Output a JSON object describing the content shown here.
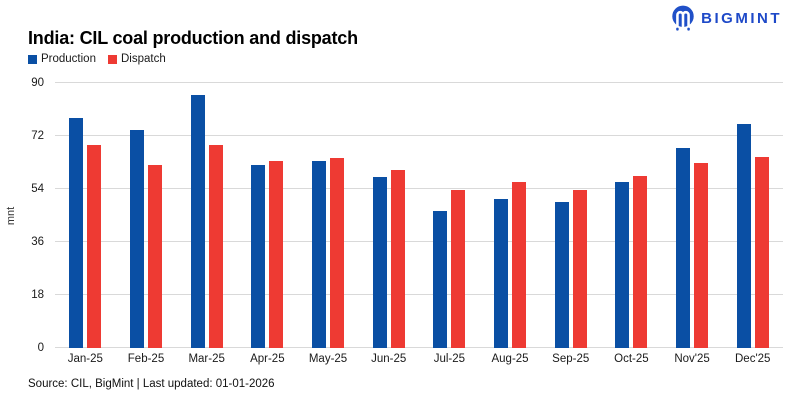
{
  "logo": {
    "text": "BIGMINT"
  },
  "header": {
    "title": "India: CIL coal production and dispatch"
  },
  "footer": {
    "text": "Source: CIL, BigMint | Last updated: 01-01-2026"
  },
  "colors": {
    "production": "#0a4fa4",
    "dispatch": "#ee3a33",
    "grid": "#d9d9d9",
    "logo": "#2050c8",
    "logo_text": "#1e49c8"
  },
  "chart_data": {
    "type": "bar",
    "title": "India: CIL coal production and dispatch",
    "categories": [
      "Jan-25",
      "Feb-25",
      "Mar-25",
      "Apr-25",
      "May-25",
      "Jun-25",
      "Jul-25",
      "Aug-25",
      "Sep-25",
      "Oct-25",
      "Nov'25",
      "Dec'25"
    ],
    "series": [
      {
        "name": "Production",
        "color": "#0a4fa4",
        "values": [
          78,
          74,
          86,
          62,
          63.5,
          58,
          46.5,
          50.5,
          49.5,
          56.5,
          68,
          76
        ]
      },
      {
        "name": "Dispatch",
        "color": "#ee3a33",
        "values": [
          69,
          62,
          69,
          63.5,
          64.5,
          60.5,
          53.5,
          56.5,
          53.5,
          58.5,
          63,
          65
        ]
      }
    ],
    "xlabel": "",
    "ylabel": "mnt",
    "ylim": [
      0,
      90
    ],
    "yticks": [
      0,
      18,
      36,
      54,
      72,
      90
    ],
    "grid": true,
    "legend_position": "top-left"
  }
}
